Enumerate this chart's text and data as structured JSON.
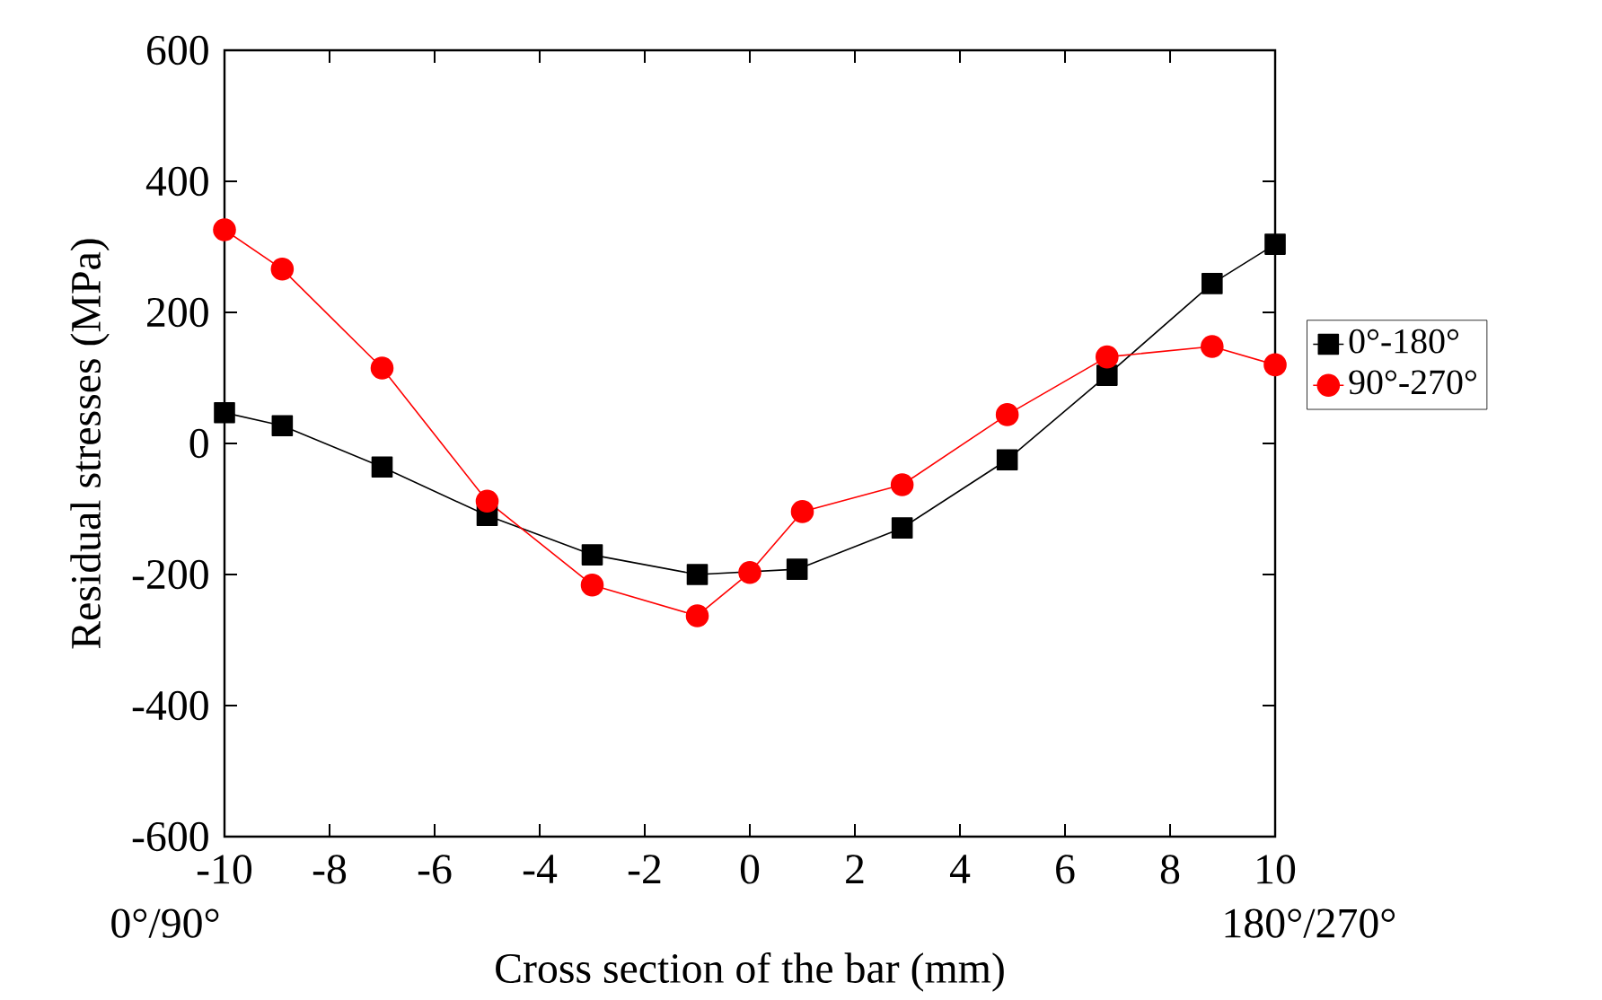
{
  "chart_data": {
    "type": "line",
    "xlabel": "Cross section of the bar (mm)",
    "ylabel": "Residual stresses (MPa)",
    "xlim": [
      -10,
      10
    ],
    "xticks": [
      -10,
      -8,
      -6,
      -4,
      -2,
      0,
      2,
      4,
      6,
      8,
      10
    ],
    "ylim": [
      -600,
      600
    ],
    "yticks": [
      -600,
      -400,
      -200,
      0,
      200,
      400,
      600
    ],
    "grid": false,
    "legend": "right",
    "line_style": "solid",
    "annotations": [
      "0°/90°",
      "180°/270°"
    ],
    "series": [
      {
        "name": "0°-180°",
        "color": "#000000",
        "marker": "square",
        "x": [
          -10,
          -8.9,
          -7,
          -5,
          -3,
          -1,
          0,
          0.9,
          2.9,
          4.9,
          6.8,
          8.8,
          10
        ],
        "values": [
          47,
          27,
          -36,
          -110,
          -170,
          -200,
          null,
          -192,
          -129,
          -25,
          104,
          244,
          304
        ]
      },
      {
        "name": "90°-270°",
        "color": "#ff0000",
        "marker": "circle",
        "x": [
          -10,
          -8.9,
          -7,
          -5,
          -3,
          -1,
          0,
          1,
          2.9,
          4.9,
          6.8,
          8.8,
          10
        ],
        "values": [
          326,
          266,
          115,
          -88,
          -216,
          -263,
          -197,
          -104,
          -63,
          44,
          132,
          148,
          120
        ]
      }
    ]
  }
}
